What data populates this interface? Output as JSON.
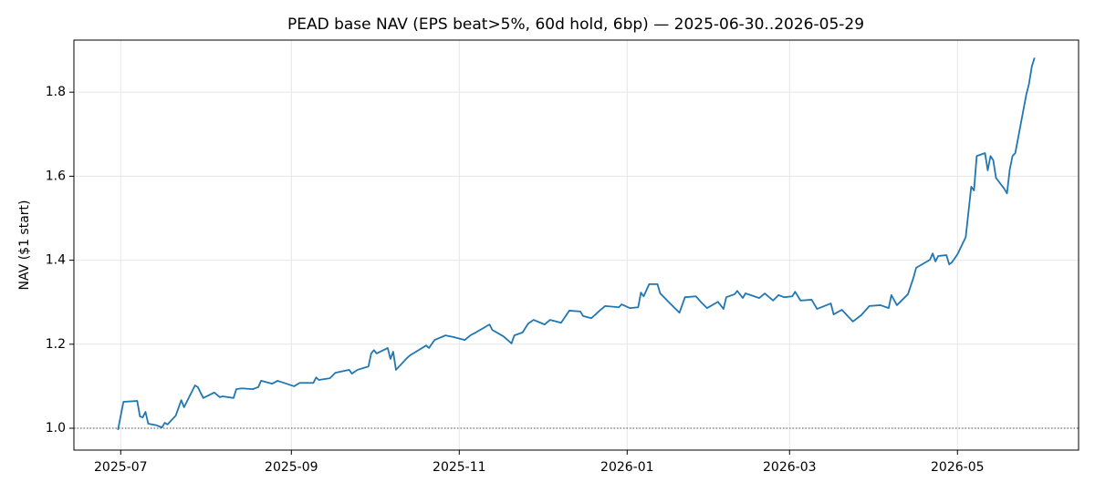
{
  "chart_data": {
    "type": "line",
    "title": "PEAD base NAV (EPS beat>5%, 60d hold, 6bp) — 2025-06-30..2026-05-29",
    "y_label": "NAV ($1 start)",
    "x": [
      "2025-06-30",
      "2025-07-02",
      "2025-07-07",
      "2025-07-08",
      "2025-07-09",
      "2025-07-10",
      "2025-07-11",
      "2025-07-14",
      "2025-07-16",
      "2025-07-17",
      "2025-07-18",
      "2025-07-21",
      "2025-07-23",
      "2025-07-24",
      "2025-07-28",
      "2025-07-29",
      "2025-07-31",
      "2025-08-04",
      "2025-08-06",
      "2025-08-07",
      "2025-08-11",
      "2025-08-12",
      "2025-08-14",
      "2025-08-18",
      "2025-08-20",
      "2025-08-21",
      "2025-08-25",
      "2025-08-27",
      "2025-09-02",
      "2025-09-04",
      "2025-09-09",
      "2025-09-10",
      "2025-09-11",
      "2025-09-15",
      "2025-09-17",
      "2025-09-22",
      "2025-09-23",
      "2025-09-25",
      "2025-09-29",
      "2025-09-30",
      "2025-10-01",
      "2025-10-02",
      "2025-10-06",
      "2025-10-07",
      "2025-10-08",
      "2025-10-09",
      "2025-10-13",
      "2025-10-14",
      "2025-10-20",
      "2025-10-21",
      "2025-10-23",
      "2025-10-27",
      "2025-10-30",
      "2025-11-03",
      "2025-11-05",
      "2025-11-07",
      "2025-11-12",
      "2025-11-13",
      "2025-11-17",
      "2025-11-20",
      "2025-11-21",
      "2025-11-24",
      "2025-11-26",
      "2025-11-28",
      "2025-12-02",
      "2025-12-04",
      "2025-12-08",
      "2025-12-11",
      "2025-12-15",
      "2025-12-16",
      "2025-12-19",
      "2025-12-22",
      "2025-12-24",
      "2025-12-29",
      "2025-12-30",
      "2026-01-02",
      "2026-01-05",
      "2026-01-06",
      "2026-01-07",
      "2026-01-09",
      "2026-01-12",
      "2026-01-13",
      "2026-01-16",
      "2026-01-20",
      "2026-01-22",
      "2026-01-26",
      "2026-01-28",
      "2026-01-30",
      "2026-02-03",
      "2026-02-05",
      "2026-02-06",
      "2026-02-09",
      "2026-02-10",
      "2026-02-12",
      "2026-02-13",
      "2026-02-18",
      "2026-02-20",
      "2026-02-23",
      "2026-02-25",
      "2026-02-27",
      "2026-03-02",
      "2026-03-03",
      "2026-03-05",
      "2026-03-09",
      "2026-03-11",
      "2026-03-16",
      "2026-03-17",
      "2026-03-20",
      "2026-03-24",
      "2026-03-27",
      "2026-03-30",
      "2026-04-03",
      "2026-04-06",
      "2026-04-07",
      "2026-04-09",
      "2026-04-13",
      "2026-04-15",
      "2026-04-16",
      "2026-04-21",
      "2026-04-22",
      "2026-04-23",
      "2026-04-24",
      "2026-04-27",
      "2026-04-28",
      "2026-04-29",
      "2026-05-01",
      "2026-05-04",
      "2026-05-06",
      "2026-05-07",
      "2026-05-08",
      "2026-05-11",
      "2026-05-12",
      "2026-05-13",
      "2026-05-14",
      "2026-05-15",
      "2026-05-18",
      "2026-05-19",
      "2026-05-20",
      "2026-05-21",
      "2026-05-22",
      "2026-05-26",
      "2026-05-27",
      "2026-05-28",
      "2026-05-29"
    ],
    "series": [
      {
        "name": "NAV",
        "color": "#1f77b4",
        "values": [
          0.996,
          1.063,
          1.065,
          1.028,
          1.026,
          1.039,
          1.011,
          1.007,
          1.002,
          1.013,
          1.009,
          1.03,
          1.067,
          1.05,
          1.102,
          1.098,
          1.072,
          1.085,
          1.074,
          1.076,
          1.072,
          1.093,
          1.095,
          1.093,
          1.098,
          1.113,
          1.106,
          1.113,
          1.1,
          1.108,
          1.108,
          1.121,
          1.115,
          1.119,
          1.132,
          1.139,
          1.13,
          1.139,
          1.147,
          1.178,
          1.186,
          1.178,
          1.191,
          1.165,
          1.182,
          1.139,
          1.167,
          1.173,
          1.197,
          1.191,
          1.21,
          1.221,
          1.217,
          1.21,
          1.221,
          1.228,
          1.247,
          1.234,
          1.219,
          1.202,
          1.221,
          1.228,
          1.249,
          1.258,
          1.247,
          1.258,
          1.251,
          1.28,
          1.278,
          1.267,
          1.262,
          1.28,
          1.291,
          1.288,
          1.295,
          1.286,
          1.288,
          1.323,
          1.314,
          1.343,
          1.343,
          1.321,
          1.301,
          1.275,
          1.312,
          1.314,
          1.299,
          1.286,
          1.301,
          1.284,
          1.312,
          1.319,
          1.327,
          1.31,
          1.321,
          1.31,
          1.321,
          1.304,
          1.317,
          1.312,
          1.314,
          1.325,
          1.304,
          1.306,
          1.284,
          1.297,
          1.271,
          1.282,
          1.254,
          1.269,
          1.291,
          1.293,
          1.286,
          1.317,
          1.293,
          1.319,
          1.358,
          1.382,
          1.401,
          1.416,
          1.397,
          1.41,
          1.412,
          1.39,
          1.395,
          1.414,
          1.455,
          1.575,
          1.566,
          1.648,
          1.655,
          1.614,
          1.648,
          1.638,
          1.596,
          1.57,
          1.559,
          1.616,
          1.648,
          1.655,
          1.794,
          1.82,
          1.861,
          1.882
        ]
      }
    ],
    "xlim": [
      "2025-06-14",
      "2026-06-14"
    ],
    "xticks": [
      {
        "value": "2025-07-01",
        "label": "2025-07"
      },
      {
        "value": "2025-09-01",
        "label": "2025-09"
      },
      {
        "value": "2025-11-01",
        "label": "2025-11"
      },
      {
        "value": "2026-01-01",
        "label": "2026-01"
      },
      {
        "value": "2026-03-01",
        "label": "2026-03"
      },
      {
        "value": "2026-05-01",
        "label": "2026-05"
      }
    ],
    "ylim": [
      0.948,
      1.924
    ],
    "yticks": [
      {
        "value": 1,
        "label": "1.0"
      },
      1.2,
      1.4,
      1.6,
      1.8
    ],
    "grid": true,
    "reference_line": {
      "y": 1,
      "color": "#555555"
    }
  }
}
